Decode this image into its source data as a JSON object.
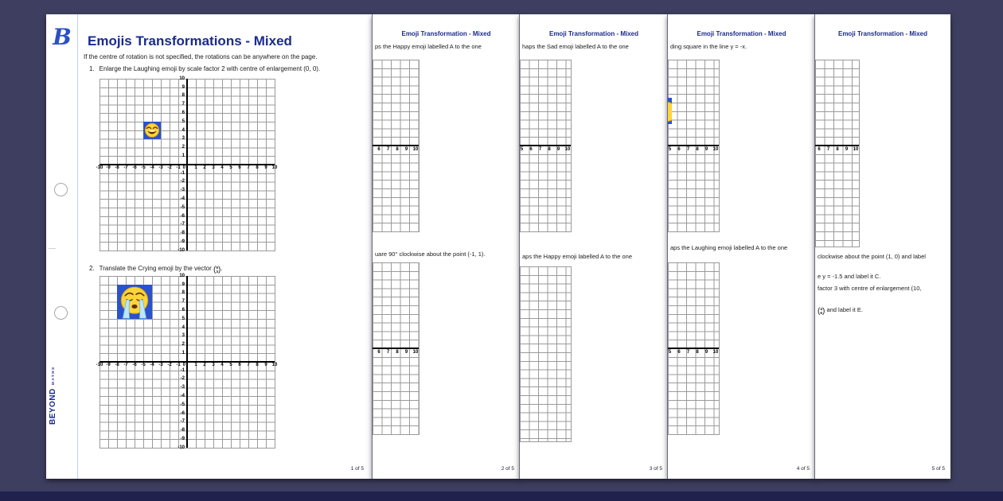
{
  "window": {
    "bg_color": "#3e3e60",
    "bottom_bar_color": "#21214e",
    "accent_blue": "#1b2b8c",
    "emoji_square_blue": "#2a52cc"
  },
  "brand": {
    "logo_letter": "B",
    "name": "BEYOND",
    "sub": "MATHS"
  },
  "page1": {
    "title": "Emojis Transformations - Mixed",
    "intro": "If the centre of rotation is not specified, the rotations can be anywhere on the page.",
    "q1_number": "1.",
    "q1_text": "Enlarge the Laughing emoji by scale factor 2 with centre of enlargement (0, 0).",
    "q2_number": "2.",
    "q2_text": "Translate the Crying emoji by the vector",
    "q2_vector_top": "5",
    "q2_vector_bottom": "3",
    "q2_suffix": ".",
    "page_number": "1 of 5"
  },
  "grid_labels": {
    "x_neg": [
      "-10",
      "-9",
      "-8",
      "-7",
      "-6",
      "-5",
      "-4",
      "-3",
      "-2",
      "-1"
    ],
    "zero": "0",
    "x_pos": [
      "1",
      "2",
      "3",
      "4",
      "5",
      "6",
      "7",
      "8",
      "9",
      "10"
    ],
    "y_pos": [
      "10",
      "9",
      "8",
      "7",
      "6",
      "5",
      "4",
      "3",
      "2",
      "1"
    ],
    "y_neg": [
      "-1",
      "-2",
      "-3",
      "-4",
      "-5",
      "-6",
      "-7",
      "-8",
      "-9",
      "-10"
    ]
  },
  "chart_data": [
    {
      "type": "grid",
      "page": 1,
      "question": 1,
      "emoji": "laughing",
      "x_range": [
        -10,
        10
      ],
      "y_range": [
        -10,
        10
      ],
      "emoji_region": {
        "x": [
          -5,
          -3
        ],
        "y": [
          3,
          5
        ]
      }
    },
    {
      "type": "grid",
      "page": 1,
      "question": 2,
      "emoji": "crying",
      "x_range": [
        -10,
        10
      ],
      "y_range": [
        -10,
        10
      ],
      "emoji_region": {
        "x": [
          -8,
          -4
        ],
        "y": [
          5,
          9
        ]
      }
    }
  ],
  "partials": [
    {
      "header": "Emoji Transformation - Mixed",
      "line1": "ps the Happy emoji labelled A to the one",
      "grid1_labels": [
        "6",
        "7",
        "8",
        "9",
        "10"
      ],
      "line2": "uare 90° clockwise about the point (-1, 1).",
      "grid2_labels": [
        "6",
        "7",
        "8",
        "9",
        "10"
      ],
      "page_number": "2 of 5"
    },
    {
      "header": "Emoji Transformation - Mixed",
      "line1": "haps the Sad emoji labelled A to the one",
      "grid1_labels": [
        "5",
        "6",
        "7",
        "8",
        "9",
        "10"
      ],
      "line2": "aps the Happy emoji labelled A to the one",
      "grid2_labels": [],
      "page_number": "3 of 5"
    },
    {
      "header": "Emoji Transformation - Mixed",
      "line1": "ding square in the line y = -x.",
      "grid1_labels": [
        "5",
        "6",
        "7",
        "8",
        "9",
        "10"
      ],
      "line2": "aps the Laughing emoji labelled A to the one",
      "grid2_labels": [
        "5",
        "6",
        "7",
        "8",
        "9",
        "10"
      ],
      "page_number": "4 of 5"
    },
    {
      "header": "Emoji Transformation - Mixed",
      "grid1_labels": [
        "6",
        "7",
        "8",
        "9",
        "10"
      ],
      "line_c1": "clockwise about the point (1, 0) and label",
      "line_c2": "e y = -1.5 and label it C.",
      "line_d": "factor 3 with centre of enlargement (10,",
      "e_vector_top": "4",
      "e_vector_bottom": "6",
      "line_e_suffix": "and label it E.",
      "page_number": "5 of 5"
    }
  ]
}
